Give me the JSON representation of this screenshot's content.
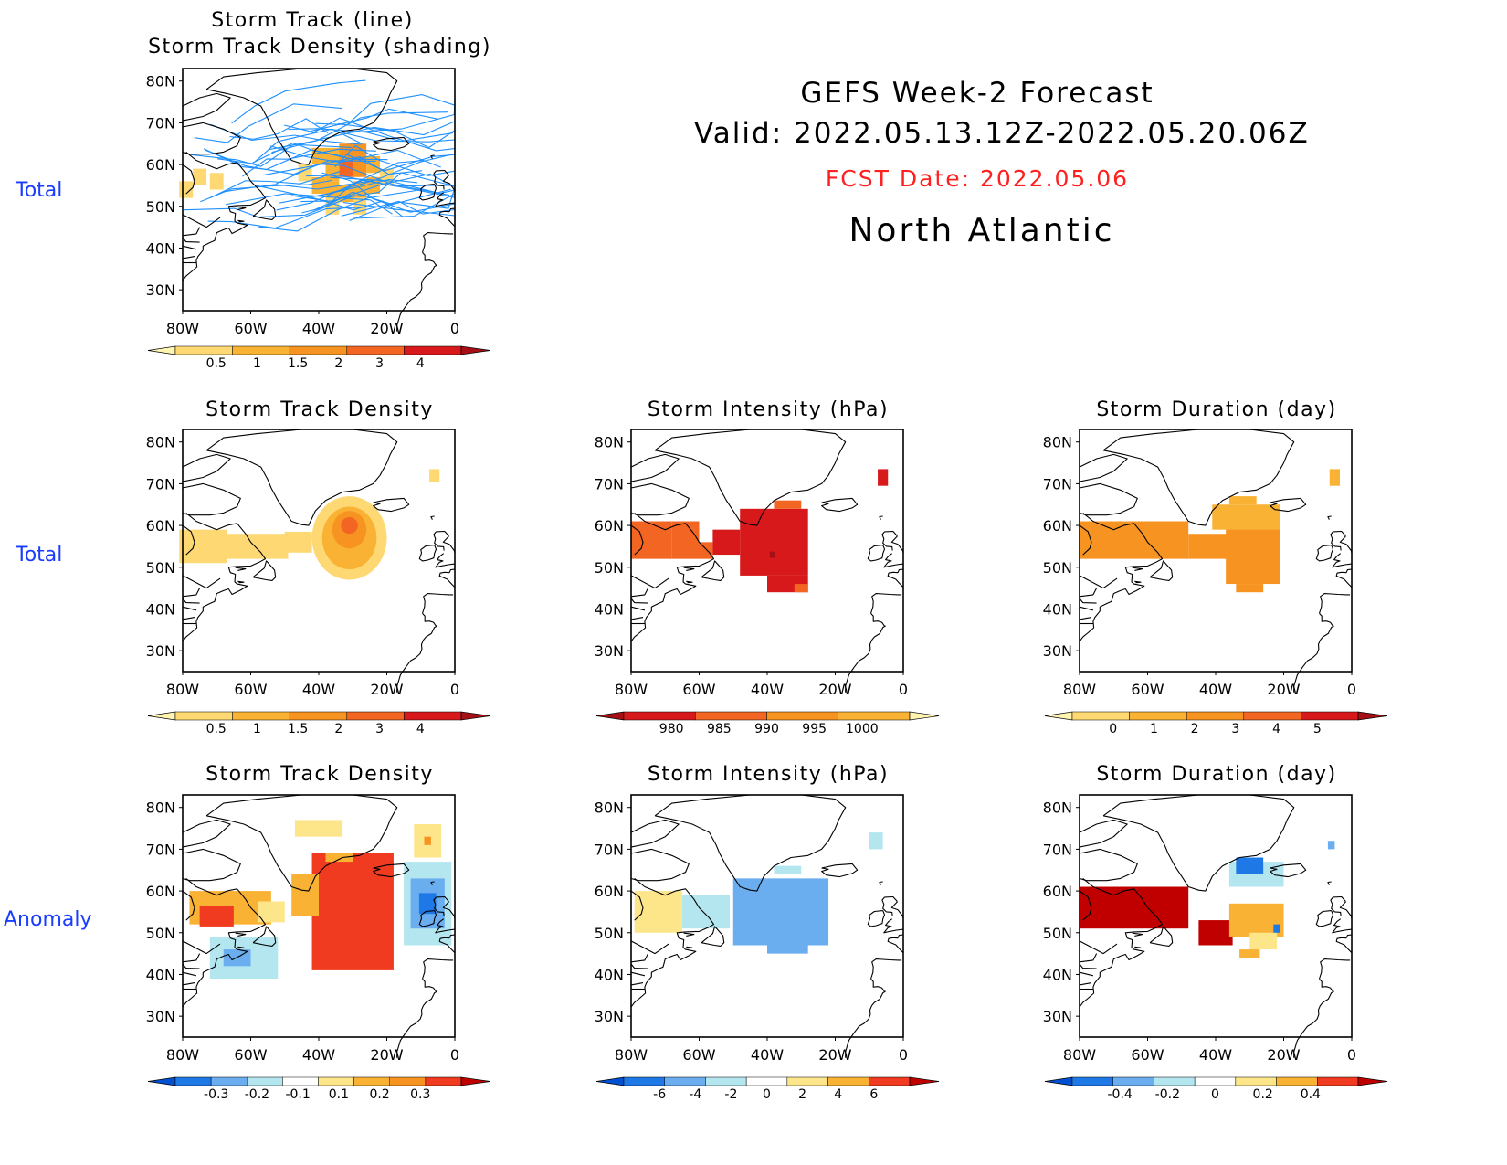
{
  "header": {
    "title": "GEFS Week-2 Forecast",
    "valid": "Valid: 2022.05.13.12Z-2022.05.20.06Z",
    "fcst_date": "FCST Date: 2022.05.06",
    "region": "North Atlantic",
    "title_color": "#000000",
    "fcst_color": "#ff2020"
  },
  "row_labels": {
    "row1": "Total",
    "row2": "Total",
    "row3": "Anomaly"
  },
  "chart_data": [
    {
      "id": "track",
      "type": "heatmap",
      "title_line1": "Storm Track (line)",
      "title_line2": "Storm Track Density (shading)",
      "xticks": [
        "80W",
        "60W",
        "40W",
        "20W",
        "0"
      ],
      "yticks": [
        "80N",
        "70N",
        "60N",
        "50N",
        "40N",
        "30N"
      ],
      "xlim": [
        -80,
        0
      ],
      "ylim": [
        25,
        83
      ],
      "line_color": "#1e90ff",
      "colorbar": {
        "labels": [
          "0.5",
          "1",
          "1.5",
          "2",
          "3",
          "4"
        ],
        "colors": [
          "#fff5b0",
          "#fdd873",
          "#f9b233",
          "#f79421",
          "#f26522",
          "#d7191c",
          "#a50f15"
        ]
      },
      "cells": [
        {
          "lon": -79,
          "lat": 54,
          "v": 1
        },
        {
          "lon": -75,
          "lat": 57,
          "v": 1
        },
        {
          "lon": -70,
          "lat": 56,
          "v": 1
        },
        {
          "lon": -40,
          "lat": 62,
          "v": 2
        },
        {
          "lon": -36,
          "lat": 62,
          "v": 2
        },
        {
          "lon": -32,
          "lat": 63,
          "v": 3
        },
        {
          "lon": -28,
          "lat": 63,
          "v": 3
        },
        {
          "lon": -32,
          "lat": 59,
          "v": 4
        },
        {
          "lon": -28,
          "lat": 59,
          "v": 3
        },
        {
          "lon": -36,
          "lat": 58,
          "v": 2
        },
        {
          "lon": -24,
          "lat": 60,
          "v": 2
        },
        {
          "lon": -40,
          "lat": 55,
          "v": 2
        },
        {
          "lon": -36,
          "lat": 54,
          "v": 2
        },
        {
          "lon": -32,
          "lat": 53,
          "v": 2
        },
        {
          "lon": -28,
          "lat": 54,
          "v": 2
        },
        {
          "lon": -24,
          "lat": 55,
          "v": 2
        },
        {
          "lon": -20,
          "lat": 57,
          "v": 1
        },
        {
          "lon": -44,
          "lat": 58,
          "v": 1
        },
        {
          "lon": -36,
          "lat": 50,
          "v": 1
        },
        {
          "lon": -28,
          "lat": 50,
          "v": 1
        }
      ]
    },
    {
      "id": "density",
      "type": "heatmap",
      "title": "Storm Track Density",
      "xticks": [
        "80W",
        "60W",
        "40W",
        "20W",
        "0"
      ],
      "yticks": [
        "80N",
        "70N",
        "60N",
        "50N",
        "40N",
        "30N"
      ],
      "xlim": [
        -80,
        0
      ],
      "ylim": [
        25,
        83
      ],
      "colorbar": {
        "labels": [
          "0.5",
          "1",
          "1.5",
          "2",
          "3",
          "4"
        ],
        "colors": [
          "#fff5b0",
          "#fdd873",
          "#f9b233",
          "#f79421",
          "#f26522",
          "#d7191c",
          "#a50f15"
        ]
      },
      "contours": [
        {
          "lon": -31,
          "lat": 57,
          "rx": 11,
          "ry": 10,
          "v": 1
        },
        {
          "lon": -31,
          "lat": 57,
          "rx": 8,
          "ry": 7.5,
          "v": 2
        },
        {
          "lon": -31,
          "lat": 59,
          "rx": 5,
          "ry": 4.5,
          "v": 3
        },
        {
          "lon": -31,
          "lat": 60,
          "rx": 2.5,
          "ry": 2,
          "v": 4
        }
      ],
      "cells": [
        {
          "lon": -74,
          "lat": 55,
          "w": 14,
          "h": 8,
          "v": 1
        },
        {
          "lon": -58,
          "lat": 55,
          "w": 18,
          "h": 6,
          "v": 1
        },
        {
          "lon": -46,
          "lat": 56,
          "w": 8,
          "h": 5,
          "v": 1
        },
        {
          "lon": -6,
          "lat": 72,
          "w": 3,
          "h": 3,
          "v": 1
        }
      ]
    },
    {
      "id": "intensity",
      "type": "heatmap",
      "title": "Storm Intensity (hPa)",
      "xticks": [
        "80W",
        "60W",
        "40W",
        "20W",
        "0"
      ],
      "yticks": [
        "80N",
        "70N",
        "60N",
        "50N",
        "40N",
        "30N"
      ],
      "xlim": [
        -80,
        0
      ],
      "ylim": [
        25,
        83
      ],
      "colorbar": {
        "labels": [
          "980",
          "985",
          "990",
          "995",
          "1000"
        ],
        "colors": [
          "#a50f15",
          "#d7191c",
          "#f26522",
          "#f79421",
          "#f9b233",
          "#fff5b0"
        ]
      },
      "cells": [
        {
          "lon": -74,
          "lat": 56.5,
          "w": 12,
          "h": 9,
          "v": 2
        },
        {
          "lon": -64,
          "lat": 56.5,
          "w": 8,
          "h": 9,
          "v": 2
        },
        {
          "lon": -58,
          "lat": 54,
          "w": 4,
          "h": 4,
          "v": 2
        },
        {
          "lon": -52,
          "lat": 56,
          "w": 8,
          "h": 6,
          "v": 1
        },
        {
          "lon": -38,
          "lat": 56,
          "w": 20,
          "h": 16,
          "v": 1
        },
        {
          "lon": -34,
          "lat": 46,
          "w": 12,
          "h": 4,
          "v": 1
        },
        {
          "lon": -30,
          "lat": 45,
          "w": 4,
          "h": 2,
          "v": 2
        },
        {
          "lon": -34,
          "lat": 65,
          "w": 8,
          "h": 2,
          "v": 2
        },
        {
          "lon": -38.5,
          "lat": 53,
          "w": 1.5,
          "h": 1.5,
          "v": 0
        },
        {
          "lon": -6,
          "lat": 71.5,
          "w": 3,
          "h": 4,
          "v": 1
        }
      ]
    },
    {
      "id": "duration",
      "type": "heatmap",
      "title": "Storm Duration (day)",
      "xticks": [
        "80W",
        "60W",
        "40W",
        "20W",
        "0"
      ],
      "yticks": [
        "80N",
        "70N",
        "60N",
        "50N",
        "40N",
        "30N"
      ],
      "xlim": [
        -80,
        0
      ],
      "ylim": [
        25,
        83
      ],
      "colorbar": {
        "labels": [
          "0",
          "1",
          "2",
          "3",
          "4",
          "5"
        ],
        "colors": [
          "#fff5b0",
          "#fdd873",
          "#f9b233",
          "#f79421",
          "#f26522",
          "#d7191c",
          "#a50f15"
        ]
      },
      "cells": [
        {
          "lon": -64,
          "lat": 56.5,
          "w": 32,
          "h": 9,
          "v": 3
        },
        {
          "lon": -42,
          "lat": 55,
          "w": 12,
          "h": 6,
          "v": 3
        },
        {
          "lon": -29,
          "lat": 53,
          "w": 16,
          "h": 14,
          "v": 3
        },
        {
          "lon": -31,
          "lat": 62,
          "w": 20,
          "h": 6,
          "v": 2
        },
        {
          "lon": -32,
          "lat": 66,
          "w": 8,
          "h": 2,
          "v": 2
        },
        {
          "lon": -30,
          "lat": 45,
          "w": 8,
          "h": 2,
          "v": 3
        },
        {
          "lon": -5,
          "lat": 71.5,
          "w": 3,
          "h": 4,
          "v": 2
        }
      ]
    },
    {
      "id": "density_anom",
      "type": "heatmap",
      "title": "Storm Track Density",
      "xticks": [
        "80W",
        "60W",
        "40W",
        "20W",
        "0"
      ],
      "yticks": [
        "80N",
        "70N",
        "60N",
        "50N",
        "40N",
        "30N"
      ],
      "xlim": [
        -80,
        0
      ],
      "ylim": [
        25,
        83
      ],
      "colorbar": {
        "labels": [
          "-0.3",
          "-0.2",
          "-0.1",
          "0.1",
          "0.2",
          "0.3"
        ],
        "colors": [
          "#0050d0",
          "#1e78e6",
          "#6aaef0",
          "#b4e6f0",
          "#ffffff",
          "#fde68a",
          "#f9b233",
          "#f79421",
          "#f03b20",
          "#c00000"
        ]
      },
      "cells": [
        {
          "lon": -66,
          "lat": 56,
          "w": 24,
          "h": 8,
          "v": 6
        },
        {
          "lon": -70,
          "lat": 54,
          "w": 10,
          "h": 5,
          "v": 8
        },
        {
          "lon": -54,
          "lat": 55,
          "w": 8,
          "h": 5,
          "v": 5
        },
        {
          "lon": -62,
          "lat": 44,
          "w": 20,
          "h": 10,
          "v": 3
        },
        {
          "lon": -64,
          "lat": 44,
          "w": 8,
          "h": 4,
          "v": 2
        },
        {
          "lon": -30,
          "lat": 55,
          "w": 24,
          "h": 28,
          "v": 8
        },
        {
          "lon": -44,
          "lat": 59,
          "w": 8,
          "h": 10,
          "v": 6
        },
        {
          "lon": -34,
          "lat": 68,
          "w": 8,
          "h": 2,
          "v": 6
        },
        {
          "lon": -40,
          "lat": 75,
          "w": 14,
          "h": 4,
          "v": 5
        },
        {
          "lon": -8,
          "lat": 57,
          "w": 14,
          "h": 20,
          "v": 3
        },
        {
          "lon": -8,
          "lat": 57,
          "w": 10,
          "h": 12,
          "v": 2
        },
        {
          "lon": -8,
          "lat": 57,
          "w": 5,
          "h": 5,
          "v": 1
        },
        {
          "lon": -8,
          "lat": 72,
          "w": 8,
          "h": 8,
          "v": 5
        },
        {
          "lon": -8,
          "lat": 72,
          "w": 2,
          "h": 2,
          "v": 7
        }
      ]
    },
    {
      "id": "intensity_anom",
      "type": "heatmap",
      "title": "Storm Intensity (hPa)",
      "xticks": [
        "80W",
        "60W",
        "40W",
        "20W",
        "0"
      ],
      "yticks": [
        "80N",
        "70N",
        "60N",
        "50N",
        "40N",
        "30N"
      ],
      "xlim": [
        -80,
        0
      ],
      "ylim": [
        25,
        83
      ],
      "colorbar": {
        "labels": [
          "-6",
          "-4",
          "-2",
          "0",
          "2",
          "4",
          "6"
        ],
        "colors": [
          "#0050d0",
          "#1e78e6",
          "#6aaef0",
          "#b4e6f0",
          "#ffffff",
          "#fde68a",
          "#f9b233",
          "#f03b20",
          "#c00000"
        ]
      },
      "cells": [
        {
          "lon": -72,
          "lat": 55,
          "w": 14,
          "h": 10,
          "v": 5
        },
        {
          "lon": -58,
          "lat": 55,
          "w": 14,
          "h": 8,
          "v": 3
        },
        {
          "lon": -36,
          "lat": 55,
          "w": 28,
          "h": 16,
          "v": 2
        },
        {
          "lon": -34,
          "lat": 47,
          "w": 12,
          "h": 4,
          "v": 2
        },
        {
          "lon": -34,
          "lat": 65,
          "w": 8,
          "h": 2,
          "v": 3
        },
        {
          "lon": -8,
          "lat": 72,
          "w": 4,
          "h": 4,
          "v": 3
        }
      ]
    },
    {
      "id": "duration_anom",
      "type": "heatmap",
      "title": "Storm Duration (day)",
      "xticks": [
        "80W",
        "60W",
        "40W",
        "20W",
        "0"
      ],
      "yticks": [
        "80N",
        "70N",
        "60N",
        "50N",
        "40N",
        "30N"
      ],
      "xlim": [
        -80,
        0
      ],
      "ylim": [
        25,
        83
      ],
      "colorbar": {
        "labels": [
          "-0.4",
          "-0.2",
          "0",
          "0.2",
          "0.4"
        ],
        "colors": [
          "#0050d0",
          "#1e78e6",
          "#6aaef0",
          "#b4e6f0",
          "#ffffff",
          "#fde68a",
          "#f9b233",
          "#f03b20",
          "#c00000"
        ]
      },
      "cells": [
        {
          "lon": -64,
          "lat": 56,
          "w": 32,
          "h": 10,
          "v": 8
        },
        {
          "lon": -40,
          "lat": 50,
          "w": 10,
          "h": 6,
          "v": 8
        },
        {
          "lon": -28,
          "lat": 53,
          "w": 16,
          "h": 8,
          "v": 6
        },
        {
          "lon": -28,
          "lat": 64,
          "w": 16,
          "h": 6,
          "v": 3
        },
        {
          "lon": -30,
          "lat": 66,
          "w": 8,
          "h": 4,
          "v": 1
        },
        {
          "lon": -26,
          "lat": 48,
          "w": 8,
          "h": 4,
          "v": 5
        },
        {
          "lon": -30,
          "lat": 45,
          "w": 6,
          "h": 2,
          "v": 6
        },
        {
          "lon": -22,
          "lat": 51,
          "w": 2,
          "h": 2,
          "v": 1
        },
        {
          "lon": -6,
          "lat": 71,
          "w": 2,
          "h": 2,
          "v": 2
        }
      ]
    }
  ]
}
